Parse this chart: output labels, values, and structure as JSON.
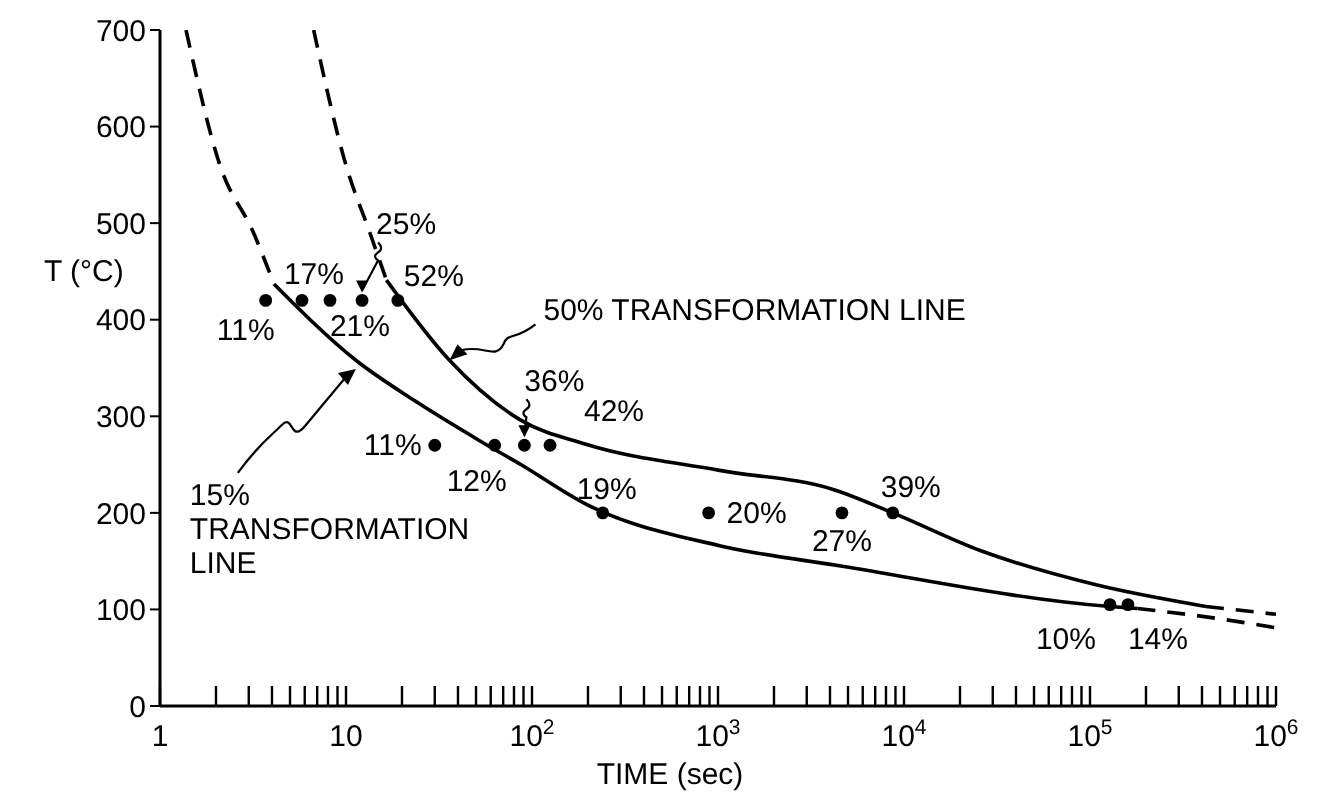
{
  "chart_data": {
    "type": "line",
    "xlabel": "TIME (sec)",
    "ylabel": "T (°C)",
    "log": "x",
    "xlim": [
      1,
      1000000
    ],
    "ylim": [
      0,
      700
    ],
    "yticks": [
      0,
      100,
      200,
      300,
      400,
      500,
      600,
      700
    ],
    "xticks": [
      1,
      {
        "value": 2,
        "label": null
      },
      {
        "value": 3,
        "label": null
      },
      {
        "value": 4,
        "label": null
      },
      {
        "value": 5,
        "label": null
      },
      {
        "value": 6,
        "label": null
      },
      {
        "value": 7,
        "label": null
      },
      {
        "value": 8,
        "label": null
      },
      {
        "value": 9,
        "label": null
      },
      10,
      {
        "value": 20,
        "label": null
      },
      {
        "value": 30,
        "label": null
      },
      {
        "value": 40,
        "label": null
      },
      {
        "value": 50,
        "label": null
      },
      {
        "value": 60,
        "label": null
      },
      {
        "value": 70,
        "label": null
      },
      {
        "value": 80,
        "label": null
      },
      {
        "value": 90,
        "label": null
      },
      {
        "value": 100,
        "label": "10$^{2}$"
      },
      {
        "value": 200,
        "label": null
      },
      {
        "value": 300,
        "label": null
      },
      {
        "value": 400,
        "label": null
      },
      {
        "value": 500,
        "label": null
      },
      {
        "value": 600,
        "label": null
      },
      {
        "value": 700,
        "label": null
      },
      {
        "value": 800,
        "label": null
      },
      {
        "value": 900,
        "label": null
      },
      {
        "value": 1000,
        "label": "10$^{3}$"
      },
      {
        "value": 2000,
        "label": null
      },
      {
        "value": 3000,
        "label": null
      },
      {
        "value": 4000,
        "label": null
      },
      {
        "value": 5000,
        "label": null
      },
      {
        "value": 6000,
        "label": null
      },
      {
        "value": 7000,
        "label": null
      },
      {
        "value": 8000,
        "label": null
      },
      {
        "value": 9000,
        "label": null
      },
      {
        "value": 10000,
        "label": "10$^{4}$"
      },
      {
        "value": 20000,
        "label": null
      },
      {
        "value": 30000,
        "label": null
      },
      {
        "value": 40000,
        "label": null
      },
      {
        "value": 50000,
        "label": null
      },
      {
        "value": 60000,
        "label": null
      },
      {
        "value": 70000,
        "label": null
      },
      {
        "value": 80000,
        "label": null
      },
      {
        "value": 90000,
        "label": null
      },
      {
        "value": 100000,
        "label": "10$^{5}$"
      },
      {
        "value": 200000,
        "label": null
      },
      {
        "value": 300000,
        "label": null
      },
      {
        "value": 400000,
        "label": null
      },
      {
        "value": 500000,
        "label": null
      },
      {
        "value": 600000,
        "label": null
      },
      {
        "value": 700000,
        "label": null
      },
      {
        "value": 800000,
        "label": null
      },
      {
        "value": 900000,
        "label": null
      },
      {
        "value": 1000000,
        "label": "10$^{6}$"
      }
    ],
    "series": [
      {
        "line_style": "dashed",
        "color": "#000000",
        "x": [
          1.38,
          2.1,
          3.2,
          4.1
        ],
        "values": [
          700,
          560,
          489,
          437
        ]
      },
      {
        "line_style": "solid",
        "color": "#000000",
        "x": [
          4.1,
          11.3,
          23,
          52,
          87,
          195,
          1020,
          4570,
          128000,
          180000
        ],
        "values": [
          437,
          358,
          317,
          275,
          250,
          209,
          166,
          145,
          103,
          101
        ]
      },
      {
        "line_style": "dashed",
        "color": "#000000",
        "x": [
          180000,
          470000,
          1000000
        ],
        "values": [
          101,
          91,
          81
        ]
      },
      {
        "line_style": "dashed",
        "color": "#000000",
        "x": [
          6.7,
          10,
          13.5,
          16.5
        ],
        "values": [
          700,
          560,
          489,
          441
        ]
      },
      {
        "line_style": "solid",
        "color": "#000000",
        "x": [
          16.5,
          36,
          87,
          195,
          1020,
          4200,
          8700,
          25700,
          105000,
          420000
        ],
        "values": [
          441,
          358,
          296,
          271,
          244,
          224,
          200,
          161,
          126,
          103
        ]
      },
      {
        "line_style": "dashed",
        "color": "#000000",
        "x": [
          420000,
          1000000
        ],
        "values": [
          103,
          95
        ]
      },
      {
        "type": "scatter",
        "marker": "circle",
        "color": "#000000",
        "x": [
          3.7,
          5.8,
          8.2,
          12.2,
          19,
          30,
          63,
          91,
          125,
          240,
          890,
          4640,
          8700,
          128000,
          160000
        ],
        "values": [
          420,
          420,
          420,
          420,
          420,
          270,
          270,
          270,
          270,
          200,
          200,
          200,
          200,
          105,
          105
        ]
      }
    ],
    "annotations": [
      {
        "text": "50% TRANSFORMATION LINE",
        "x": 36,
        "y": 358
      },
      {
        "text": "15% TRANSFORMATION LINE",
        "x": 11.3,
        "y": 349
      },
      {
        "text": "11%",
        "x": 3.7,
        "y": 420
      },
      {
        "text": "17%",
        "x": 5.8,
        "y": 420
      },
      {
        "text": "21%",
        "x": 8.2,
        "y": 420
      },
      {
        "text": "25%",
        "x": 12.2,
        "y": 420
      },
      {
        "text": "52%",
        "x": 19,
        "y": 420
      },
      {
        "text": "11%",
        "x": 30,
        "y": 270
      },
      {
        "text": "12%",
        "x": 63,
        "y": 270
      },
      {
        "text": "36%",
        "x": 91,
        "y": 270
      },
      {
        "text": "42%",
        "x": 125,
        "y": 270
      },
      {
        "text": "19%",
        "x": 240,
        "y": 200
      },
      {
        "text": "20%",
        "x": 890,
        "y": 200
      },
      {
        "text": "27%",
        "x": 4640,
        "y": 200
      },
      {
        "text": "39%",
        "x": 8700,
        "y": 200
      },
      {
        "text": "10%",
        "x": 128000,
        "y": 105
      },
      {
        "text": "14%",
        "x": 160000,
        "y": 105
      }
    ]
  }
}
